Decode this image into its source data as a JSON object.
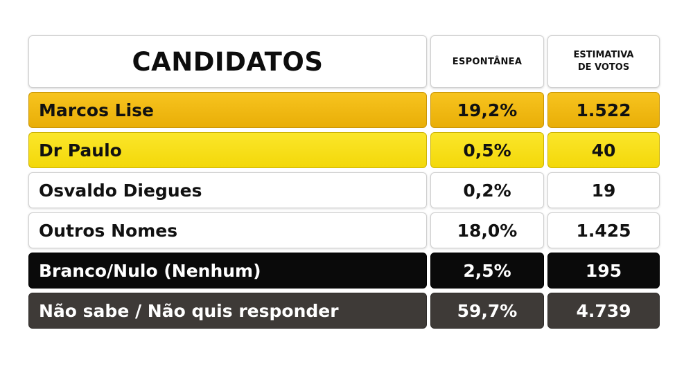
{
  "chart_data": {
    "type": "table",
    "columns": [
      "CANDIDATOS",
      "ESPONTÂNEA",
      "ESTIMATIVA DE VOTOS"
    ],
    "header": {
      "candidatos": "CANDIDATOS",
      "espontanea": "ESPONTÂNEA",
      "estimativa_line1": "ESTIMATIVA",
      "estimativa_line2": "DE VOTOS"
    },
    "rows": [
      {
        "name": "Marcos Lise",
        "espontanea": "19,2%",
        "votos": "1.522",
        "color": "#f0b814"
      },
      {
        "name": "Dr Paulo",
        "espontanea": "0,5%",
        "votos": "40",
        "color": "#f8e01a"
      },
      {
        "name": "Osvaldo Diegues",
        "espontanea": "0,2%",
        "votos": "19",
        "color": "#ffffff"
      },
      {
        "name": "Outros Nomes",
        "espontanea": "18,0%",
        "votos": "1.425",
        "color": "#ffffff"
      },
      {
        "name": "Branco/Nulo (Nenhum)",
        "espontanea": "2,5%",
        "votos": "195",
        "color": "#0a0a0a"
      },
      {
        "name": "Não sabe / Não quis responder",
        "espontanea": "59,7%",
        "votos": "4.739",
        "color": "#3e3a37"
      }
    ]
  }
}
